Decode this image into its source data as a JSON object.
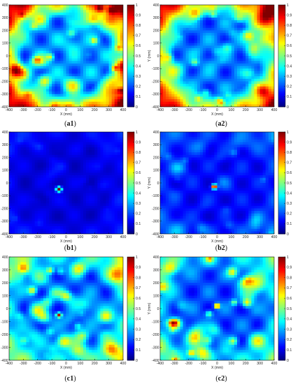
{
  "chart_data": [
    {
      "type": "heatmap",
      "panel": "a1",
      "caption": "(a1)",
      "xlabel": "X (mm)",
      "ylabel": "Y (mm)",
      "xlim": [
        -400,
        400
      ],
      "ylim": [
        -400,
        400
      ],
      "x_ticks": [
        -400,
        -300,
        -200,
        -100,
        0,
        100,
        200,
        300,
        400
      ],
      "y_ticks": [
        400,
        300,
        200,
        100,
        0,
        -100,
        -200,
        -300,
        -400
      ],
      "colorbar": {
        "ticks": [
          0,
          0.1,
          0.2,
          0.3,
          0.4,
          0.5,
          0.6,
          0.7,
          0.8,
          0.9,
          1
        ],
        "range": [
          0,
          1
        ],
        "colormap": "jet"
      },
      "pattern": {
        "base": 0.38,
        "edge": 0.55,
        "center_peak": 0.0,
        "peak_x": 0,
        "peak_y": 0,
        "spots": 0.35
      }
    },
    {
      "type": "heatmap",
      "panel": "a2",
      "caption": "(a2)",
      "xlabel": "X (mm)",
      "ylabel": "Y (mm)",
      "xlim": [
        -400,
        400
      ],
      "ylim": [
        -400,
        400
      ],
      "x_ticks": [
        -400,
        -300,
        -200,
        -100,
        0,
        100,
        200,
        300,
        400
      ],
      "y_ticks": [
        400,
        300,
        200,
        100,
        0,
        -100,
        -200,
        -300,
        -400
      ],
      "colorbar": {
        "ticks": [
          0,
          0.1,
          0.2,
          0.3,
          0.4,
          0.5,
          0.6,
          0.7,
          0.8,
          0.9,
          1
        ],
        "range": [
          0,
          1
        ],
        "colormap": "jet"
      },
      "pattern": {
        "base": 0.33,
        "edge": 0.55,
        "center_peak": 0.0,
        "peak_x": 0,
        "peak_y": 0,
        "spots": 0.3
      }
    },
    {
      "type": "heatmap",
      "panel": "b1",
      "caption": "(b1)",
      "xlabel": "X (mm)",
      "ylabel": "Y (mm)",
      "xlim": [
        -400,
        400
      ],
      "ylim": [
        -400,
        400
      ],
      "x_ticks": [
        -400,
        -300,
        -200,
        -100,
        0,
        100,
        200,
        300,
        400
      ],
      "y_ticks": [
        400,
        300,
        200,
        100,
        0,
        -100,
        -200,
        -300,
        -400
      ],
      "colorbar": {
        "ticks": [
          0,
          0.1,
          0.2,
          0.3,
          0.4,
          0.5,
          0.6,
          0.7,
          0.8,
          0.9,
          1
        ],
        "range": [
          0,
          1
        ],
        "colormap": "jet"
      },
      "pattern": {
        "base": 0.12,
        "edge": 0.05,
        "center_peak": 1.0,
        "peak_x": -50,
        "peak_y": -50,
        "spots": 0.05
      }
    },
    {
      "type": "heatmap",
      "panel": "b2",
      "caption": "(b2)",
      "xlabel": "X (mm)",
      "ylabel": "Y (mm)",
      "xlim": [
        -400,
        400
      ],
      "ylim": [
        -400,
        400
      ],
      "x_ticks": [
        -400,
        -300,
        -200,
        -100,
        0,
        100,
        200,
        300,
        400
      ],
      "y_ticks": [
        400,
        300,
        200,
        100,
        0,
        -100,
        -200,
        -300,
        -400
      ],
      "colorbar": {
        "ticks": [
          0,
          0.1,
          0.2,
          0.3,
          0.4,
          0.5,
          0.6,
          0.7,
          0.8,
          0.9,
          1
        ],
        "range": [
          0,
          1
        ],
        "colormap": "jet"
      },
      "pattern": {
        "base": 0.18,
        "edge": 0.08,
        "center_peak": 0.9,
        "peak_x": -20,
        "peak_y": -30,
        "spots": 0.12
      }
    },
    {
      "type": "heatmap",
      "panel": "c1",
      "caption": "(c1)",
      "xlabel": "X (mm)",
      "ylabel": "Y (mm)",
      "xlim": [
        -400,
        400
      ],
      "ylim": [
        -400,
        400
      ],
      "x_ticks": [
        -400,
        -300,
        -200,
        -100,
        0,
        100,
        200,
        300,
        400
      ],
      "y_ticks": [
        400,
        300,
        200,
        100,
        0,
        -100,
        -200,
        -300,
        -400
      ],
      "colorbar": {
        "ticks": [
          0,
          0.1,
          0.2,
          0.3,
          0.4,
          0.5,
          0.6,
          0.7,
          0.8,
          0.9,
          1
        ],
        "range": [
          0,
          1
        ],
        "colormap": "jet"
      },
      "pattern": {
        "base": 0.3,
        "edge": 0.25,
        "center_peak": 0.75,
        "peak_x": -50,
        "peak_y": -50,
        "spots": 0.4
      }
    },
    {
      "type": "heatmap",
      "panel": "c2",
      "caption": "(c2)",
      "xlabel": "X (mm)",
      "ylabel": "Y (mm)",
      "xlim": [
        -400,
        400
      ],
      "ylim": [
        -400,
        400
      ],
      "x_ticks": [
        -400,
        -300,
        -200,
        -100,
        0,
        100,
        200,
        300,
        400
      ],
      "y_ticks": [
        400,
        300,
        200,
        100,
        0,
        -100,
        -200,
        -300,
        -400
      ],
      "colorbar": {
        "ticks": [
          0,
          0.1,
          0.2,
          0.3,
          0.4,
          0.5,
          0.6,
          0.7,
          0.8,
          0.9,
          1
        ],
        "range": [
          0,
          1
        ],
        "colormap": "jet"
      },
      "pattern": {
        "base": 0.28,
        "edge": 0.2,
        "center_peak": 0.8,
        "peak_x": 0,
        "peak_y": 20,
        "spots": 0.4
      }
    }
  ]
}
